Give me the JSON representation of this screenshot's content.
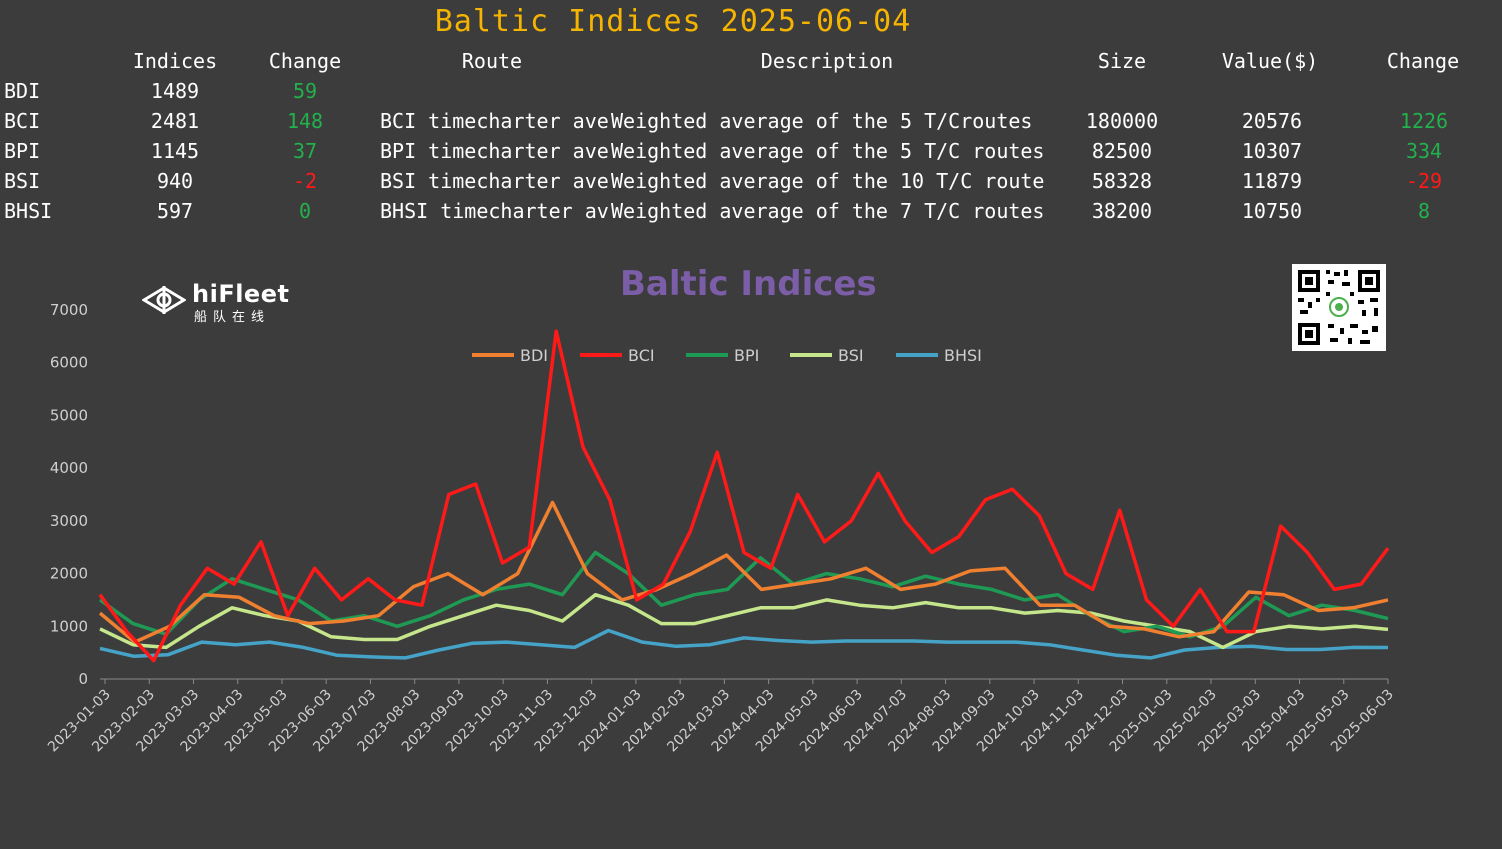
{
  "header": {
    "title": "Baltic Indices 2025-06-04"
  },
  "table": {
    "columns": [
      "Indices",
      "Change",
      "Route",
      "Description",
      "Size",
      "Value($)",
      "Change"
    ],
    "rows": [
      {
        "name": "BDI",
        "index": "1489",
        "change": "59",
        "change_sign": "pos",
        "route": "",
        "description": "",
        "size": "",
        "value": "",
        "value_change": "",
        "value_change_sign": ""
      },
      {
        "name": "BCI",
        "index": "2481",
        "change": "148",
        "change_sign": "pos",
        "route": "BCI timecharter ave",
        "description": "Weighted average of the 5 T/Croutes",
        "size": "180000",
        "value": "20576",
        "value_change": "1226",
        "value_change_sign": "pos"
      },
      {
        "name": "BPI",
        "index": "1145",
        "change": "37",
        "change_sign": "pos",
        "route": "BPI timecharter ave",
        "description": "Weighted average of the 5 T/C routes",
        "size": "82500",
        "value": "10307",
        "value_change": "334",
        "value_change_sign": "pos"
      },
      {
        "name": "BSI",
        "index": "940",
        "change": "-2",
        "change_sign": "neg",
        "route": "BSI timecharter ave",
        "description": "Weighted average of the 10 T/C route",
        "size": "58328",
        "value": "11879",
        "value_change": "-29",
        "value_change_sign": "neg"
      },
      {
        "name": "BHSI",
        "index": "597",
        "change": "0",
        "change_sign": "zero",
        "route": "BHSI timecharter av",
        "description": "Weighted average of the 7 T/C routes",
        "size": "38200",
        "value": "10750",
        "value_change": "8",
        "value_change_sign": "pos"
      }
    ]
  },
  "logo": {
    "name": "hiFleet",
    "sub": "船队在线"
  },
  "chart_data": {
    "type": "line",
    "title": "Baltic Indices",
    "ylim": [
      0,
      7000
    ],
    "y_ticks": [
      0,
      1000,
      2000,
      3000,
      4000,
      5000,
      6000,
      7000
    ],
    "x_ticks": [
      "2023-01-03",
      "2023-02-03",
      "2023-03-03",
      "2023-04-03",
      "2023-05-03",
      "2023-06-03",
      "2023-07-03",
      "2023-08-03",
      "2023-09-03",
      "2023-10-03",
      "2023-11-03",
      "2023-12-03",
      "2024-01-03",
      "2024-02-03",
      "2024-03-03",
      "2024-04-03",
      "2024-05-03",
      "2024-06-03",
      "2024-07-03",
      "2024-08-03",
      "2024-09-03",
      "2024-10-03",
      "2024-11-03",
      "2024-12-03",
      "2025-01-03",
      "2025-02-03",
      "2025-03-03",
      "2025-04-03",
      "2025-05-03",
      "2025-06-03"
    ],
    "legend_position": "top",
    "grid": false,
    "series": [
      {
        "name": "BDI",
        "color": "#f08030",
        "values": [
          1250,
          700,
          1000,
          1600,
          1550,
          1200,
          1050,
          1100,
          1200,
          1750,
          2000,
          1600,
          2000,
          3350,
          2000,
          1500,
          1700,
          2000,
          2350,
          1700,
          1800,
          1900,
          2100,
          1700,
          1800,
          2050,
          2100,
          1400,
          1400,
          1000,
          950,
          800,
          900,
          1650,
          1600,
          1300,
          1350,
          1500
        ]
      },
      {
        "name": "BCI",
        "color": "#ff1a1a",
        "values": [
          1600,
          900,
          350,
          1400,
          2100,
          1800,
          2600,
          1200,
          2100,
          1500,
          1900,
          1500,
          1400,
          3500,
          3700,
          2200,
          2500,
          6600,
          4400,
          3400,
          1500,
          1800,
          2800,
          4300,
          2400,
          2100,
          3500,
          2600,
          3000,
          3900,
          3000,
          2400,
          2700,
          3400,
          3600,
          3100,
          2000,
          1700,
          3200,
          1500,
          1000,
          1700,
          900,
          900,
          2900,
          2400,
          1700,
          1800,
          2481
        ]
      },
      {
        "name": "BPI",
        "color": "#1f9a55",
        "values": [
          1500,
          1050,
          850,
          1500,
          1900,
          1700,
          1500,
          1100,
          1200,
          1000,
          1200,
          1500,
          1700,
          1800,
          1600,
          2400,
          2000,
          1400,
          1600,
          1700,
          2300,
          1800,
          2000,
          1900,
          1750,
          1950,
          1800,
          1700,
          1500,
          1600,
          1200,
          900,
          1000,
          800,
          1000,
          1550,
          1200,
          1400,
          1300,
          1145
        ]
      },
      {
        "name": "BSI",
        "color": "#c5e68a",
        "values": [
          950,
          650,
          600,
          1000,
          1350,
          1200,
          1100,
          800,
          750,
          750,
          1000,
          1200,
          1400,
          1300,
          1100,
          1600,
          1400,
          1050,
          1050,
          1200,
          1350,
          1350,
          1500,
          1400,
          1350,
          1450,
          1350,
          1350,
          1250,
          1300,
          1250,
          1100,
          1000,
          900,
          600,
          900,
          1000,
          950,
          1000,
          940
        ]
      },
      {
        "name": "BHSI",
        "color": "#46a3c8",
        "values": [
          580,
          430,
          460,
          700,
          650,
          700,
          600,
          450,
          420,
          400,
          550,
          680,
          700,
          650,
          600,
          920,
          700,
          620,
          650,
          780,
          730,
          700,
          720,
          720,
          720,
          700,
          700,
          700,
          650,
          550,
          450,
          400,
          550,
          600,
          620,
          560,
          560,
          600,
          597
        ]
      }
    ]
  }
}
